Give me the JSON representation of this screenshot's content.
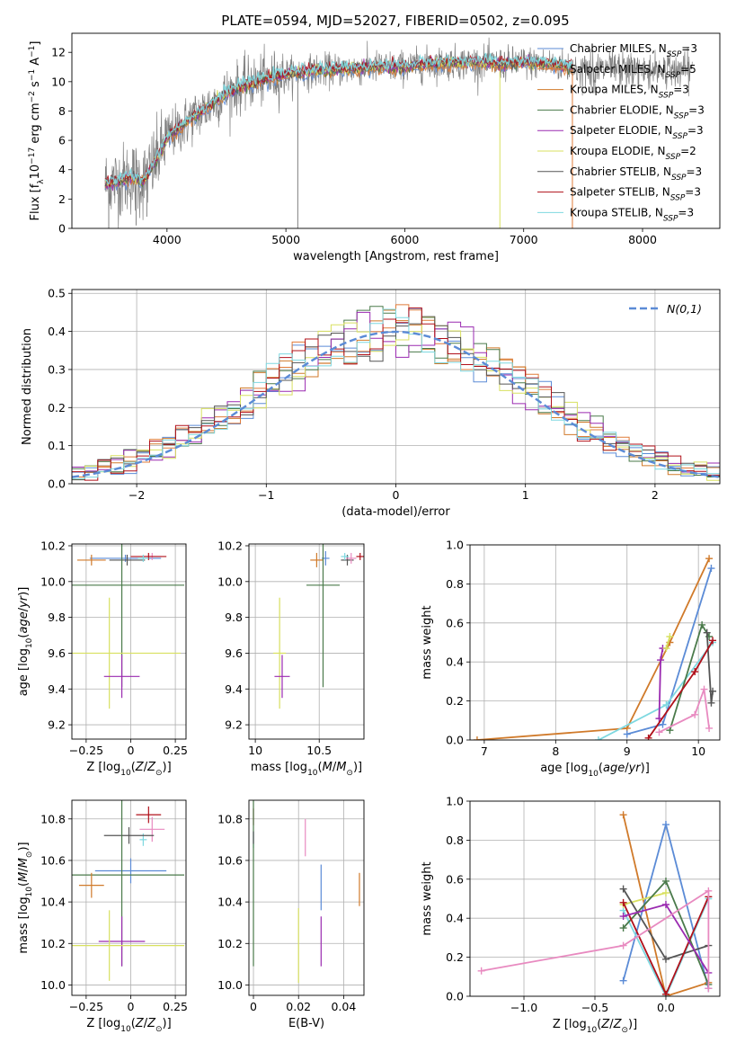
{
  "chart_data": [
    {
      "id": "spectrum",
      "type": "line",
      "title": "PLATE=0594, MJD=52027, FIBERID=0502, z=0.095",
      "xlabel": "wavelength [Angstrom, rest frame]",
      "ylabel": "Flux [f_λ10^-17 erg cm^-2 s^-1 A^-1]",
      "xlim": [
        3200,
        8650
      ],
      "ylim": [
        0,
        13.3
      ],
      "xticks": [
        4000,
        5000,
        6000,
        7000,
        8000
      ],
      "yticks": [
        0,
        2,
        4,
        6,
        8,
        10,
        12
      ],
      "grid": false,
      "legend_position": "top-right",
      "legend": [
        "Chabrier MILES, N_SSP=3",
        "Salpeter MILES, N_SSP=5",
        "Kroupa MILES, N_SSP=3",
        "Chabrier ELODIE, N_SSP=3",
        "Salpeter ELODIE, N_SSP=3",
        "Kroupa ELODIE, N_SSP=2",
        "Chabrier STELIB, N_SSP=3",
        "Salpeter STELIB, N_SSP=3",
        "Kroupa STELIB, N_SSP=3"
      ],
      "legend_colors": [
        "#5b8bd6",
        "#e07b39",
        "#d07a2a",
        "#4a7a4a",
        "#9a2ab0",
        "#d8e060",
        "#555555",
        "#b0101a",
        "#7ed8e0"
      ],
      "continuum": {
        "x": [
          3480,
          3600,
          3700,
          3800,
          3900,
          4000,
          4100,
          4200,
          4300,
          4400,
          4500,
          4600,
          4700,
          4800,
          4900,
          5000,
          5200,
          5400,
          5600,
          5800,
          6000,
          6200,
          6400,
          6600,
          6800,
          7000,
          7200,
          7410
        ],
        "y": [
          3.0,
          3.2,
          3.5,
          3.2,
          4.5,
          6.2,
          6.8,
          7.5,
          8.0,
          8.6,
          9.2,
          9.6,
          9.9,
          10.1,
          10.3,
          10.5,
          10.7,
          10.8,
          10.9,
          11.0,
          11.0,
          11.2,
          11.3,
          11.3,
          11.2,
          11.3,
          11.2,
          11.0
        ]
      }
    },
    {
      "id": "residuals",
      "type": "step",
      "xlabel": "(data-model)/error",
      "ylabel": "Normed distribution",
      "xlim": [
        -2.5,
        2.5
      ],
      "ylim": [
        0,
        0.51
      ],
      "xticks": [
        -2,
        -1,
        0,
        1,
        2
      ],
      "yticks": [
        0.0,
        0.1,
        0.2,
        0.3,
        0.4,
        0.5
      ],
      "grid": true,
      "legend": [
        "N(0,1)"
      ],
      "legend_position": "top-right",
      "bin_width": 0.1
    },
    {
      "id": "age-vs-Z",
      "type": "errorbar",
      "xlabel": "Z [log10(Z/Z⊙)]",
      "ylabel": "age  [log10(age/yr)]",
      "xlim": [
        -0.33,
        0.31
      ],
      "ylim": [
        9.12,
        10.21
      ],
      "xticks": [
        -0.25,
        0.0,
        0.25
      ],
      "yticks": [
        9.2,
        9.4,
        9.6,
        9.8,
        10.0,
        10.2
      ],
      "grid": true,
      "points": [
        {
          "x": -0.03,
          "xerr": 0.2,
          "y": 10.13,
          "yerr": 0.02,
          "color": "#5b8bd6"
        },
        {
          "x": -0.02,
          "xerr": 0.1,
          "y": 10.12,
          "yerr": 0.03,
          "color": "#555555"
        },
        {
          "x": -0.22,
          "xerr": 0.08,
          "y": 10.12,
          "yerr": 0.03,
          "color": "#d07a2a"
        },
        {
          "x": 0.12,
          "xerr": 0.05,
          "y": 10.14,
          "yerr": 0.02,
          "color": "#e88ac0"
        },
        {
          "x": 0.1,
          "xerr": 0.1,
          "y": 10.14,
          "yerr": 0.02,
          "color": "#b0101a"
        },
        {
          "x": 0.07,
          "xerr": 0.03,
          "y": 10.13,
          "yerr": 0.02,
          "color": "#7ed8e0"
        },
        {
          "x": -0.05,
          "xerr": 0.35,
          "y": 9.98,
          "yerr": 0.57,
          "color": "#4a7a4a"
        },
        {
          "x": -0.12,
          "xerr": 0.4,
          "y": 9.6,
          "yerr": 0.31,
          "color": "#d8e060"
        },
        {
          "x": -0.05,
          "xerr": 0.1,
          "y": 9.47,
          "yerr": 0.12,
          "color": "#9a2ab0"
        }
      ]
    },
    {
      "id": "age-vs-mass",
      "type": "errorbar",
      "xlabel": "mass [log10(M/M⊙)]",
      "ylabel": "",
      "xlim": [
        9.95,
        10.85
      ],
      "ylim": [
        9.12,
        10.21
      ],
      "xticks": [
        10.0,
        10.5
      ],
      "yticks": [
        9.2,
        9.4,
        9.6,
        9.8,
        10.0,
        10.2
      ],
      "grid": true,
      "points": [
        {
          "x": 10.55,
          "xerr": 0.03,
          "y": 10.13,
          "yerr": 0.04,
          "color": "#5b8bd6"
        },
        {
          "x": 10.48,
          "xerr": 0.05,
          "y": 10.12,
          "yerr": 0.04,
          "color": "#d07a2a"
        },
        {
          "x": 10.72,
          "xerr": 0.05,
          "y": 10.12,
          "yerr": 0.03,
          "color": "#555555"
        },
        {
          "x": 10.75,
          "xerr": 0.04,
          "y": 10.13,
          "yerr": 0.03,
          "color": "#e88ac0"
        },
        {
          "x": 10.82,
          "xerr": 0.03,
          "y": 10.14,
          "yerr": 0.02,
          "color": "#b0101a"
        },
        {
          "x": 10.7,
          "xerr": 0.03,
          "y": 10.14,
          "yerr": 0.02,
          "color": "#7ed8e0"
        },
        {
          "x": 10.53,
          "xerr": 0.13,
          "y": 9.98,
          "yerr": 0.57,
          "color": "#4a7a4a"
        },
        {
          "x": 10.19,
          "xerr": 0.05,
          "y": 9.6,
          "yerr": 0.31,
          "color": "#d8e060"
        },
        {
          "x": 10.21,
          "xerr": 0.06,
          "y": 9.47,
          "yerr": 0.12,
          "color": "#9a2ab0"
        }
      ]
    },
    {
      "id": "massweight-vs-age",
      "type": "line",
      "xlabel": "age  [log10(age/yr)]",
      "ylabel": "mass weight",
      "xlim": [
        6.8,
        10.3
      ],
      "ylim": [
        0,
        1.0
      ],
      "xticks": [
        7,
        8,
        9,
        10
      ],
      "yticks": [
        0.0,
        0.2,
        0.4,
        0.6,
        0.8,
        1.0
      ],
      "grid": true,
      "series": [
        {
          "color": "#d07a2a",
          "x": [
            6.9,
            9.0,
            9.6,
            10.15
          ],
          "y": [
            0.0,
            0.06,
            0.5,
            0.93
          ]
        },
        {
          "color": "#5b8bd6",
          "x": [
            9.0,
            9.5,
            10.18
          ],
          "y": [
            0.03,
            0.08,
            0.88
          ]
        },
        {
          "color": "#7ed8e0",
          "x": [
            8.6,
            9.55,
            10.2
          ],
          "y": [
            0.0,
            0.18,
            0.5
          ]
        },
        {
          "color": "#9a2ab0",
          "x": [
            9.45,
            9.47,
            9.5
          ],
          "y": [
            0.11,
            0.41,
            0.47
          ]
        },
        {
          "color": "#d8e060",
          "x": [
            9.55,
            9.6
          ],
          "y": [
            0.47,
            0.53
          ]
        },
        {
          "color": "#4a7a4a",
          "x": [
            9.6,
            10.05,
            10.15
          ],
          "y": [
            0.05,
            0.59,
            0.53
          ]
        },
        {
          "color": "#555555",
          "x": [
            10.12,
            10.18,
            10.2
          ],
          "y": [
            0.55,
            0.19,
            0.25
          ]
        },
        {
          "color": "#b0101a",
          "x": [
            9.3,
            9.95,
            10.2
          ],
          "y": [
            0.01,
            0.35,
            0.51
          ]
        },
        {
          "color": "#e88ac0",
          "x": [
            9.45,
            9.95,
            10.08,
            10.15
          ],
          "y": [
            0.04,
            0.13,
            0.26,
            0.06
          ]
        }
      ]
    },
    {
      "id": "mass-vs-Z",
      "type": "errorbar",
      "xlabel": "Z [log10(Z/Z⊙)]",
      "ylabel": "mass [log10(M/M⊙)]",
      "xlim": [
        -0.33,
        0.31
      ],
      "ylim": [
        9.95,
        10.89
      ],
      "xticks": [
        -0.25,
        0.0,
        0.25
      ],
      "yticks": [
        10.0,
        10.2,
        10.4,
        10.6,
        10.8
      ],
      "grid": true,
      "points": [
        {
          "x": 0.1,
          "xerr": 0.07,
          "y": 10.82,
          "yerr": 0.04,
          "color": "#b0101a"
        },
        {
          "x": 0.12,
          "xerr": 0.07,
          "y": 10.75,
          "yerr": 0.06,
          "color": "#e88ac0"
        },
        {
          "x": 0.07,
          "xerr": 0.02,
          "y": 10.7,
          "yerr": 0.03,
          "color": "#7ed8e0"
        },
        {
          "x": -0.01,
          "xerr": 0.14,
          "y": 10.72,
          "yerr": 0.04,
          "color": "#555555"
        },
        {
          "x": 0.0,
          "xerr": 0.2,
          "y": 10.55,
          "yerr": 0.06,
          "color": "#5b8bd6"
        },
        {
          "x": -0.05,
          "xerr": 0.35,
          "y": 10.53,
          "yerr": 0.44,
          "color": "#4a7a4a"
        },
        {
          "x": -0.22,
          "xerr": 0.07,
          "y": 10.48,
          "yerr": 0.06,
          "color": "#d07a2a"
        },
        {
          "x": -0.05,
          "xerr": 0.13,
          "y": 10.21,
          "yerr": 0.12,
          "color": "#9a2ab0"
        },
        {
          "x": -0.12,
          "xerr": 0.42,
          "y": 10.19,
          "yerr": 0.17,
          "color": "#d8e060"
        }
      ]
    },
    {
      "id": "mass-vs-EBV",
      "type": "errorbar",
      "xlabel": "E(B-V)",
      "ylabel": "",
      "xlim": [
        -0.002,
        0.049
      ],
      "ylim": [
        9.95,
        10.89
      ],
      "xticks": [
        0.0,
        0.02,
        0.04
      ],
      "yticks": [
        10.0,
        10.2,
        10.4,
        10.6,
        10.8
      ],
      "grid": true,
      "points": [
        {
          "x": 0.0,
          "y": 10.81,
          "yerr": 0.04,
          "color": "#b0101a"
        },
        {
          "x": 0.0,
          "y": 10.7,
          "yerr": 0.04,
          "color": "#7ed8e0"
        },
        {
          "x": 0.0,
          "y": 10.52,
          "yerr": 0.43,
          "color": "#4a7a4a"
        },
        {
          "x": 0.0,
          "y": 10.71,
          "yerr": 0.03,
          "color": "#555555"
        },
        {
          "x": 0.023,
          "y": 10.71,
          "yerr": 0.09,
          "color": "#e88ac0"
        },
        {
          "x": 0.03,
          "y": 10.47,
          "yerr": 0.11,
          "color": "#5b8bd6"
        },
        {
          "x": 0.047,
          "y": 10.46,
          "yerr": 0.08,
          "color": "#d07a2a"
        },
        {
          "x": 0.03,
          "y": 10.21,
          "yerr": 0.12,
          "color": "#9a2ab0"
        },
        {
          "x": 0.02,
          "y": 10.19,
          "yerr": 0.18,
          "color": "#d8e060"
        }
      ]
    },
    {
      "id": "massweight-vs-Z",
      "type": "line",
      "xlabel": "Z [log10(Z/Z⊙)]",
      "ylabel": "mass weight",
      "xlim": [
        -1.38,
        0.38
      ],
      "ylim": [
        0,
        1.0
      ],
      "xticks": [
        -1.0,
        -0.5,
        0.0
      ],
      "tick_labels": [
        "−1.0",
        "−0.5",
        "0.0"
      ],
      "yticks": [
        0.0,
        0.2,
        0.4,
        0.6,
        0.8,
        1.0
      ],
      "grid": true,
      "series": [
        {
          "color": "#d07a2a",
          "x": [
            -0.3,
            0.0,
            0.3
          ],
          "y": [
            0.93,
            0.0,
            0.07
          ]
        },
        {
          "color": "#5b8bd6",
          "x": [
            -0.3,
            0.0,
            0.3
          ],
          "y": [
            0.08,
            0.88,
            0.04
          ]
        },
        {
          "color": "#7ed8e0",
          "x": [
            -0.3,
            0.0,
            0.3
          ],
          "y": [
            0.44,
            0.0,
            0.5
          ]
        },
        {
          "color": "#d8e060",
          "x": [
            -0.3,
            0.0
          ],
          "y": [
            0.47,
            0.53
          ]
        },
        {
          "color": "#4a7a4a",
          "x": [
            -0.3,
            0.0,
            0.3
          ],
          "y": [
            0.35,
            0.59,
            0.06
          ]
        },
        {
          "color": "#555555",
          "x": [
            -0.3,
            0.0,
            0.3
          ],
          "y": [
            0.55,
            0.19,
            0.26
          ]
        },
        {
          "color": "#b0101a",
          "x": [
            -0.3,
            0.0,
            0.3
          ],
          "y": [
            0.48,
            0.01,
            0.51
          ]
        },
        {
          "color": "#9a2ab0",
          "x": [
            -0.3,
            0.0,
            0.3
          ],
          "y": [
            0.41,
            0.47,
            0.12
          ]
        },
        {
          "color": "#e88ac0",
          "x": [
            -1.3,
            -0.3,
            0.3,
            0.3
          ],
          "y": [
            0.13,
            0.26,
            0.54,
            0.04
          ]
        }
      ]
    }
  ]
}
